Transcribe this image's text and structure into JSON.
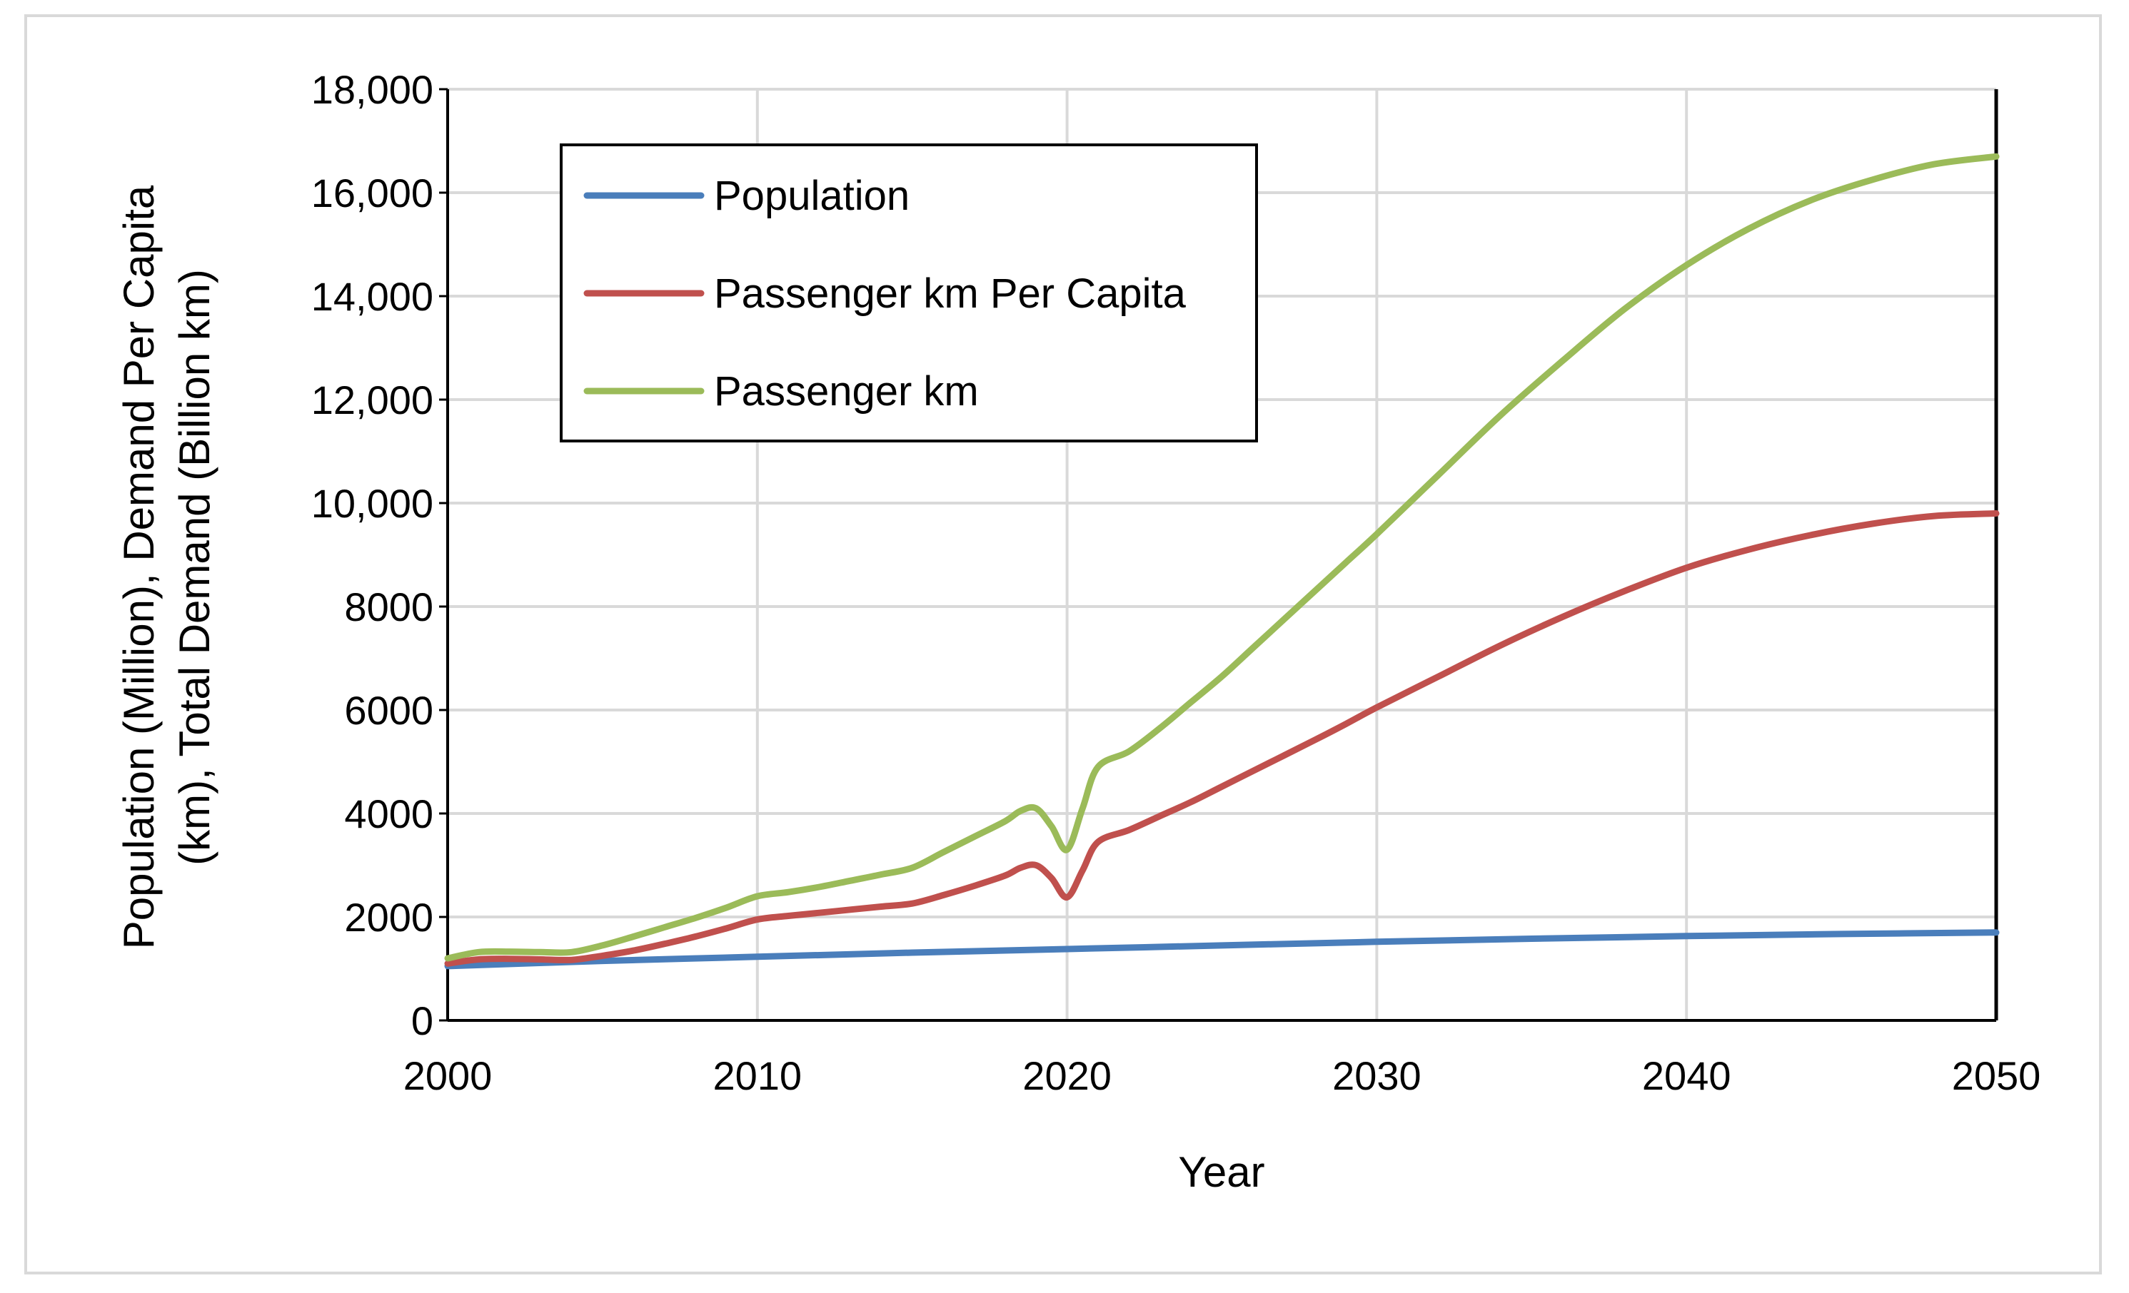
{
  "chart_data": {
    "type": "line",
    "title": "",
    "xlabel": "Year",
    "ylabel_lines": [
      "Population (Million), Demand Per Capita",
      "(km), Total Demand (Billion km)"
    ],
    "xlim": [
      2000,
      2050
    ],
    "ylim": [
      0,
      18000
    ],
    "x_ticks": [
      2000,
      2010,
      2020,
      2030,
      2040,
      2050
    ],
    "x_tick_labels": [
      "2000",
      "2010",
      "2020",
      "2030",
      "2040",
      "2050"
    ],
    "y_ticks": [
      0,
      2000,
      4000,
      6000,
      8000,
      10000,
      12000,
      14000,
      16000,
      18000
    ],
    "y_tick_labels": [
      "0",
      "2000",
      "4000",
      "6000",
      "8000",
      "10,000",
      "12,000",
      "14,000",
      "16,000",
      "18,000"
    ],
    "grid": true,
    "legend_position": "top-left",
    "series": [
      {
        "name": "Population",
        "color": "#4a7ebb",
        "x": [
          2000,
          2005,
          2010,
          2015,
          2020,
          2025,
          2030,
          2035,
          2040,
          2045,
          2050
        ],
        "values": [
          1050,
          1150,
          1230,
          1310,
          1380,
          1450,
          1520,
          1580,
          1630,
          1670,
          1700
        ]
      },
      {
        "name": "Passenger km Per Capita",
        "color": "#c0504d",
        "x": [
          2000,
          2001,
          2002,
          2003,
          2004,
          2005,
          2006,
          2007,
          2008,
          2009,
          2010,
          2011,
          2012,
          2013,
          2014,
          2015,
          2016,
          2017,
          2018,
          2018.5,
          2019,
          2019.5,
          2020,
          2020.5,
          2021,
          2022,
          2023,
          2024,
          2025,
          2026,
          2027,
          2028,
          2029,
          2030,
          2032,
          2034,
          2036,
          2038,
          2040,
          2042,
          2044,
          2046,
          2048,
          2050
        ],
        "values": [
          1100,
          1180,
          1190,
          1180,
          1170,
          1250,
          1350,
          1480,
          1620,
          1780,
          1950,
          2020,
          2080,
          2140,
          2200,
          2260,
          2420,
          2600,
          2800,
          2950,
          3000,
          2750,
          2380,
          2900,
          3450,
          3680,
          3950,
          4220,
          4520,
          4820,
          5120,
          5420,
          5730,
          6050,
          6650,
          7250,
          7800,
          8300,
          8750,
          9100,
          9380,
          9600,
          9750,
          9800
        ]
      },
      {
        "name": "Passenger km",
        "color": "#9bbb59",
        "x": [
          2000,
          2001,
          2002,
          2003,
          2004,
          2005,
          2006,
          2007,
          2008,
          2009,
          2010,
          2011,
          2012,
          2013,
          2014,
          2015,
          2016,
          2017,
          2018,
          2018.5,
          2019,
          2019.5,
          2020,
          2020.5,
          2021,
          2022,
          2023,
          2024,
          2025,
          2026,
          2027,
          2028,
          2029,
          2030,
          2032,
          2034,
          2036,
          2038,
          2040,
          2042,
          2044,
          2046,
          2048,
          2050
        ],
        "values": [
          1200,
          1320,
          1330,
          1320,
          1320,
          1450,
          1620,
          1800,
          1980,
          2180,
          2400,
          2480,
          2580,
          2700,
          2820,
          2950,
          3250,
          3550,
          3850,
          4050,
          4100,
          3750,
          3300,
          4100,
          4900,
          5200,
          5650,
          6150,
          6650,
          7200,
          7750,
          8300,
          8850,
          9400,
          10550,
          11700,
          12750,
          13750,
          14600,
          15300,
          15850,
          16250,
          16550,
          16700
        ]
      }
    ]
  }
}
